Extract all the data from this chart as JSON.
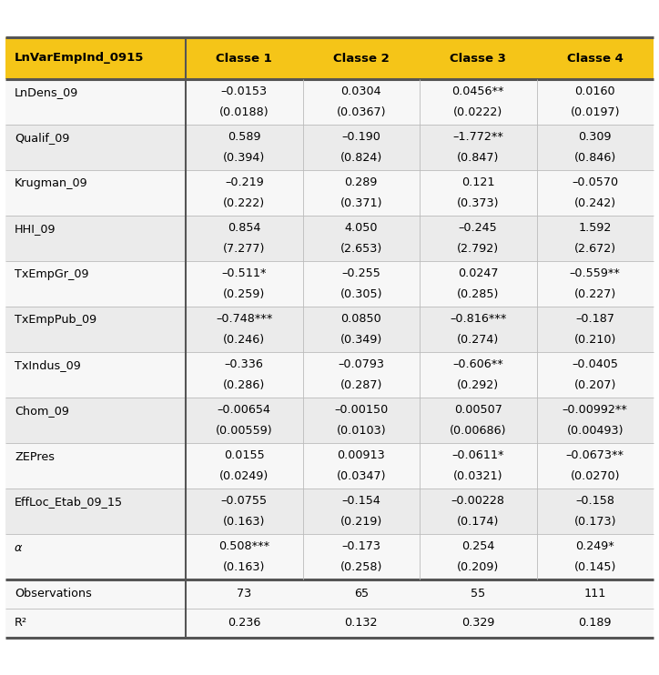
{
  "header_bg": "#F5C518",
  "header_text_color": "#000000",
  "row_bg_odd": "#EBEBEB",
  "row_bg_even": "#F7F7F7",
  "border_thick_color": "#555555",
  "border_thin_color": "#BBBBBB",
  "col0_header": "LnVarEmpInd_0915",
  "columns": [
    "Classe 1",
    "Classe 2",
    "Classe 3",
    "Classe 4"
  ],
  "rows": [
    {
      "label": "LnDens_09",
      "italic": false,
      "coef": [
        "–0.0153",
        "0.0304",
        "0.0456**",
        "0.0160"
      ],
      "se": [
        "(0.0188)",
        "(0.0367)",
        "(0.0222)",
        "(0.0197)"
      ]
    },
    {
      "label": "Qualif_09",
      "italic": false,
      "coef": [
        "0.589",
        "–0.190",
        "–1.772**",
        "0.309"
      ],
      "se": [
        "(0.394)",
        "(0.824)",
        "(0.847)",
        "(0.846)"
      ]
    },
    {
      "label": "Krugman_09",
      "italic": false,
      "coef": [
        "–0.219",
        "0.289",
        "0.121",
        "–0.0570"
      ],
      "se": [
        "(0.222)",
        "(0.371)",
        "(0.373)",
        "(0.242)"
      ]
    },
    {
      "label": "HHI_09",
      "italic": false,
      "coef": [
        "0.854",
        "4.050",
        "–0.245",
        "1.592"
      ],
      "se": [
        "(7.277)",
        "(2.653)",
        "(2.792)",
        "(2.672)"
      ]
    },
    {
      "label": "TxEmpGr_09",
      "italic": false,
      "coef": [
        "–0.511*",
        "–0.255",
        "0.0247",
        "–0.559**"
      ],
      "se": [
        "(0.259)",
        "(0.305)",
        "(0.285)",
        "(0.227)"
      ]
    },
    {
      "label": "TxEmpPub_09",
      "italic": false,
      "coef": [
        "–0.748***",
        "0.0850",
        "–0.816***",
        "–0.187"
      ],
      "se": [
        "(0.246)",
        "(0.349)",
        "(0.274)",
        "(0.210)"
      ]
    },
    {
      "label": "TxIndus_09",
      "italic": false,
      "coef": [
        "–0.336",
        "–0.0793",
        "–0.606**",
        "–0.0405"
      ],
      "se": [
        "(0.286)",
        "(0.287)",
        "(0.292)",
        "(0.207)"
      ]
    },
    {
      "label": "Chom_09",
      "italic": false,
      "coef": [
        "–0.00654",
        "–0.00150",
        "0.00507",
        "–0.00992**"
      ],
      "se": [
        "(0.00559)",
        "(0.0103)",
        "(0.00686)",
        "(0.00493)"
      ]
    },
    {
      "label": "ZEPres",
      "italic": false,
      "coef": [
        "0.0155",
        "0.00913",
        "–0.0611*",
        "–0.0673**"
      ],
      "se": [
        "(0.0249)",
        "(0.0347)",
        "(0.0321)",
        "(0.0270)"
      ]
    },
    {
      "label": "EffLoc_Etab_09_15",
      "italic": false,
      "coef": [
        "–0.0755",
        "–0.154",
        "–0.00228",
        "–0.158"
      ],
      "se": [
        "(0.163)",
        "(0.219)",
        "(0.174)",
        "(0.173)"
      ]
    },
    {
      "label": "α",
      "italic": true,
      "coef": [
        "0.508***",
        "–0.173",
        "0.254",
        "0.249*"
      ],
      "se": [
        "(0.163)",
        "(0.258)",
        "(0.209)",
        "(0.145)"
      ]
    }
  ],
  "footer_rows": [
    {
      "label": "Observations",
      "values": [
        "73",
        "65",
        "55",
        "111"
      ]
    },
    {
      "label": "R²",
      "values": [
        "0.236",
        "0.132",
        "0.329",
        "0.189"
      ]
    }
  ],
  "figsize": [
    7.24,
    7.42
  ],
  "dpi": 100
}
